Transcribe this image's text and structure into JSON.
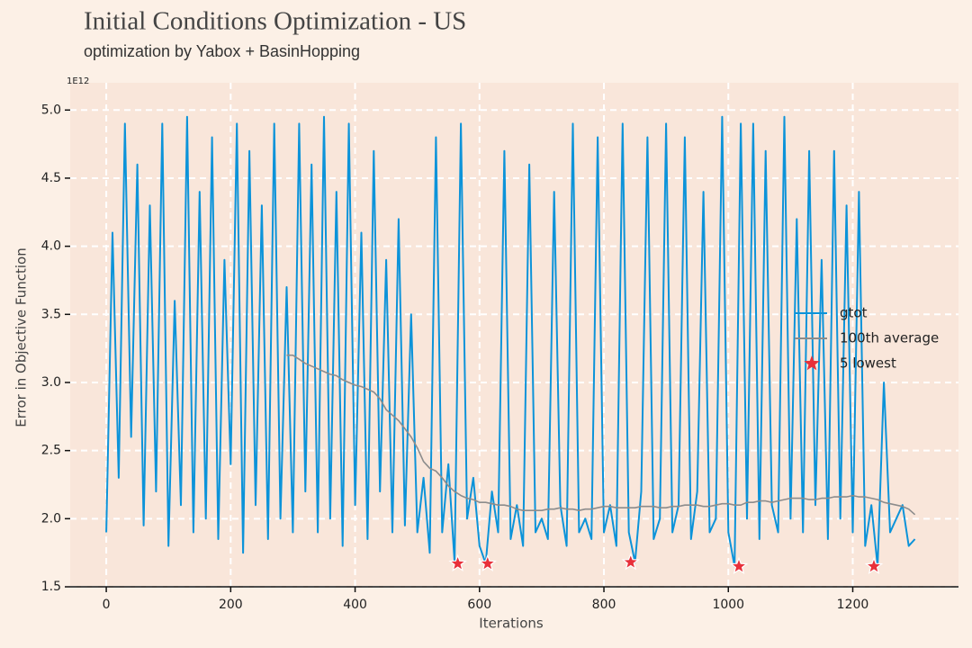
{
  "chart_data": {
    "type": "line",
    "title": "Initial Conditions Optimization - US",
    "subtitle": "optimization by Yabox + BasinHopping",
    "x_label": "Iterations",
    "y_label": "Error in Objective Function",
    "offset_label": "1E12",
    "xlim": [
      -58,
      1370
    ],
    "ylim": [
      1.5,
      5.2
    ],
    "xticks": [
      0,
      200,
      400,
      600,
      800,
      1000,
      1200
    ],
    "yticks": [
      1.5,
      {
        "value": 2,
        "label": "2.0"
      },
      2.5,
      {
        "value": 3,
        "label": "3.0"
      },
      3.5,
      {
        "value": 4,
        "label": "4.0"
      },
      4.5,
      {
        "value": 5,
        "label": "5.0"
      }
    ],
    "grid": true,
    "legend": "center right",
    "x": [
      0,
      10,
      20,
      30,
      40,
      50,
      60,
      70,
      80,
      90,
      100,
      110,
      120,
      130,
      140,
      150,
      160,
      170,
      180,
      190,
      200,
      210,
      220,
      230,
      240,
      250,
      260,
      270,
      280,
      290,
      300,
      310,
      320,
      330,
      340,
      350,
      360,
      370,
      380,
      390,
      400,
      410,
      420,
      430,
      440,
      450,
      460,
      470,
      480,
      490,
      500,
      510,
      520,
      530,
      540,
      550,
      560,
      570,
      580,
      590,
      600,
      610,
      620,
      630,
      640,
      650,
      660,
      670,
      680,
      690,
      700,
      710,
      720,
      730,
      740,
      750,
      760,
      770,
      780,
      790,
      800,
      810,
      820,
      830,
      840,
      850,
      860,
      870,
      880,
      890,
      900,
      910,
      920,
      930,
      940,
      950,
      960,
      970,
      980,
      990,
      1000,
      1010,
      1020,
      1030,
      1040,
      1050,
      1060,
      1070,
      1080,
      1090,
      1100,
      1110,
      1120,
      1130,
      1140,
      1150,
      1160,
      1170,
      1180,
      1190,
      1200,
      1210,
      1220,
      1230,
      1240,
      1250,
      1260,
      1270,
      1280,
      1290,
      1300
    ],
    "series": [
      {
        "name": "gtot",
        "kind": "line",
        "color": "#0c93d9",
        "values": [
          1.9,
          4.1,
          2.3,
          4.9,
          2.6,
          4.6,
          1.95,
          4.3,
          2.2,
          4.9,
          1.8,
          3.6,
          2.1,
          4.95,
          1.9,
          4.4,
          2.0,
          4.8,
          1.85,
          3.9,
          2.4,
          4.9,
          1.75,
          4.7,
          2.1,
          4.3,
          1.85,
          4.9,
          2.0,
          3.7,
          1.9,
          4.9,
          2.2,
          4.6,
          1.9,
          4.95,
          2.0,
          4.4,
          1.8,
          4.9,
          2.1,
          4.1,
          1.85,
          4.7,
          2.2,
          3.9,
          1.9,
          4.2,
          1.95,
          3.5,
          1.9,
          2.3,
          1.75,
          4.8,
          1.9,
          2.4,
          1.68,
          4.9,
          2.0,
          2.3,
          1.8,
          1.67,
          2.2,
          1.9,
          4.7,
          1.85,
          2.1,
          1.8,
          4.6,
          1.9,
          2.0,
          1.85,
          4.4,
          2.1,
          1.8,
          4.9,
          1.9,
          2.0,
          1.85,
          4.8,
          1.9,
          2.1,
          1.8,
          4.9,
          1.9,
          1.68,
          2.2,
          4.8,
          1.85,
          2.0,
          4.9,
          1.9,
          2.1,
          4.8,
          1.85,
          2.2,
          4.4,
          1.9,
          2.0,
          4.95,
          1.9,
          1.65,
          4.9,
          2.0,
          4.9,
          1.85,
          4.7,
          2.1,
          1.9,
          4.95,
          2.0,
          4.2,
          1.9,
          4.7,
          2.1,
          3.9,
          1.85,
          4.7,
          2.0,
          4.3,
          1.9,
          4.4,
          1.8,
          2.1,
          1.65,
          3.0,
          1.9,
          2.0,
          2.1,
          1.8,
          1.85
        ]
      },
      {
        "name": "100th average",
        "kind": "line",
        "color": "#8c8c8c",
        "values": [
          null,
          null,
          null,
          null,
          null,
          null,
          null,
          null,
          null,
          null,
          null,
          null,
          null,
          null,
          null,
          null,
          null,
          null,
          null,
          null,
          null,
          null,
          null,
          null,
          null,
          null,
          null,
          null,
          null,
          3.2,
          3.2,
          3.17,
          3.14,
          3.12,
          3.1,
          3.08,
          3.06,
          3.05,
          3.02,
          3.0,
          2.98,
          2.97,
          2.95,
          2.93,
          2.88,
          2.8,
          2.76,
          2.72,
          2.66,
          2.6,
          2.52,
          2.42,
          2.37,
          2.35,
          2.3,
          2.24,
          2.2,
          2.17,
          2.15,
          2.14,
          2.12,
          2.12,
          2.11,
          2.1,
          2.1,
          2.09,
          2.07,
          2.06,
          2.06,
          2.06,
          2.06,
          2.07,
          2.07,
          2.08,
          2.07,
          2.07,
          2.06,
          2.07,
          2.07,
          2.08,
          2.09,
          2.09,
          2.08,
          2.08,
          2.08,
          2.08,
          2.09,
          2.09,
          2.09,
          2.08,
          2.08,
          2.09,
          2.09,
          2.1,
          2.1,
          2.1,
          2.09,
          2.09,
          2.1,
          2.11,
          2.11,
          2.1,
          2.1,
          2.12,
          2.12,
          2.13,
          2.13,
          2.12,
          2.13,
          2.14,
          2.15,
          2.15,
          2.15,
          2.14,
          2.14,
          2.15,
          2.15,
          2.16,
          2.16,
          2.16,
          2.17,
          2.16,
          2.16,
          2.15,
          2.14,
          2.12,
          2.11,
          2.1,
          2.09,
          2.07,
          2.03
        ]
      },
      {
        "name": "5 lowest",
        "kind": "scatter",
        "marker": "star",
        "color": "#e8303a",
        "x": [
          565,
          613,
          843,
          1017,
          1234
        ],
        "values": [
          1.67,
          1.67,
          1.68,
          1.65,
          1.65
        ]
      }
    ]
  }
}
